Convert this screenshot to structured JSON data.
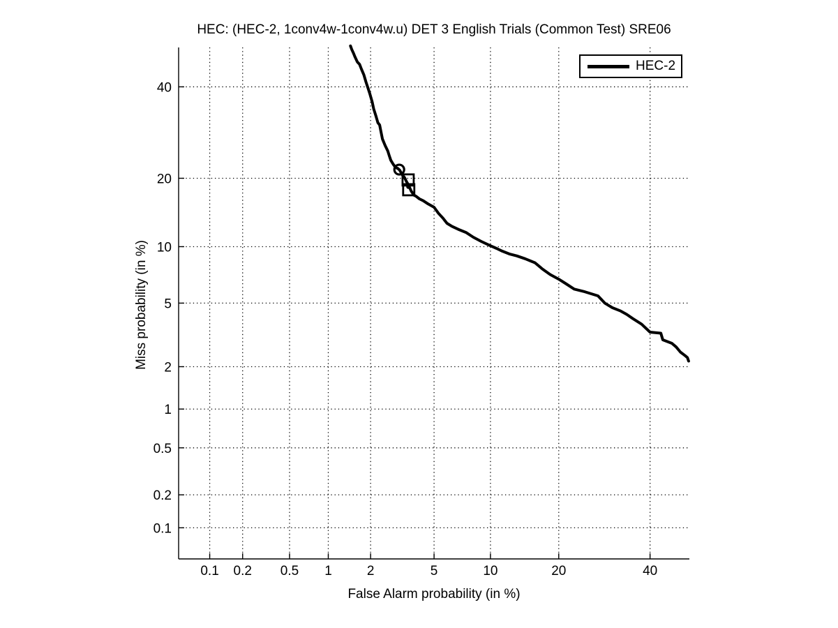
{
  "chart_data": {
    "type": "line",
    "variant": "DET curve, normal-deviate (probit) scale on both axes",
    "title": "HEC: (HEC-2, 1conv4w-1conv4w.u) DET 3 English Trials (Common Test) SRE06",
    "xlabel": "False Alarm probability (in %)",
    "ylabel": "Miss probability (in %)",
    "x_ticks_pct": [
      0.1,
      0.2,
      0.5,
      1,
      2,
      5,
      10,
      20,
      40
    ],
    "y_ticks_pct": [
      0.1,
      0.2,
      0.5,
      1,
      2,
      5,
      10,
      20,
      40
    ],
    "xlim_pct": [
      0.05,
      50
    ],
    "ylim_pct": [
      0.05,
      50
    ],
    "grid": "dotted",
    "legend_position": "top-right",
    "axis_color": "#000000",
    "series": [
      {
        "name": "HEC-2",
        "color": "#000000",
        "line_width": 4,
        "points_fa_miss_pct": [
          [
            1.45,
            50.4
          ],
          [
            1.48,
            49.5
          ],
          [
            1.52,
            48.6
          ],
          [
            1.56,
            47.6
          ],
          [
            1.62,
            46.3
          ],
          [
            1.68,
            45.7
          ],
          [
            1.73,
            44.5
          ],
          [
            1.8,
            43.0
          ],
          [
            1.86,
            41.2
          ],
          [
            1.92,
            39.7
          ],
          [
            1.98,
            38.2
          ],
          [
            2.05,
            36.3
          ],
          [
            2.1,
            34.6
          ],
          [
            2.17,
            33.0
          ],
          [
            2.24,
            31.4
          ],
          [
            2.3,
            30.9
          ],
          [
            2.35,
            29.3
          ],
          [
            2.4,
            27.8
          ],
          [
            2.5,
            26.4
          ],
          [
            2.6,
            25.3
          ],
          [
            2.66,
            24.3
          ],
          [
            2.72,
            23.4
          ],
          [
            2.82,
            22.6
          ],
          [
            2.92,
            22.0
          ],
          [
            3.02,
            21.8
          ],
          [
            3.1,
            21.5
          ],
          [
            3.22,
            20.6
          ],
          [
            3.33,
            20.1
          ],
          [
            3.42,
            19.4
          ],
          [
            3.52,
            18.8
          ],
          [
            3.65,
            17.8
          ],
          [
            3.8,
            17.1
          ],
          [
            3.92,
            16.9
          ],
          [
            4.1,
            16.5
          ],
          [
            4.32,
            16.2
          ],
          [
            4.62,
            15.7
          ],
          [
            5.0,
            15.2
          ],
          [
            5.3,
            14.3
          ],
          [
            5.62,
            13.6
          ],
          [
            5.92,
            12.9
          ],
          [
            6.3,
            12.5
          ],
          [
            6.82,
            12.1
          ],
          [
            7.5,
            11.7
          ],
          [
            8.2,
            11.1
          ],
          [
            9.0,
            10.6
          ],
          [
            10.0,
            10.1
          ],
          [
            10.7,
            9.8
          ],
          [
            11.4,
            9.5
          ],
          [
            12.3,
            9.2
          ],
          [
            13.3,
            9.0
          ],
          [
            14.5,
            8.7
          ],
          [
            16.0,
            8.3
          ],
          [
            17.2,
            7.7
          ],
          [
            18.5,
            7.2
          ],
          [
            20.0,
            6.8
          ],
          [
            21.4,
            6.4
          ],
          [
            22.9,
            6.0
          ],
          [
            25.0,
            5.8
          ],
          [
            27.8,
            5.5
          ],
          [
            29.3,
            5.0
          ],
          [
            31.0,
            4.7
          ],
          [
            32.9,
            4.5
          ],
          [
            34.3,
            4.3
          ],
          [
            35.8,
            4.05
          ],
          [
            37.9,
            3.75
          ],
          [
            40.0,
            3.35
          ],
          [
            42.7,
            3.3
          ],
          [
            43.2,
            3.0
          ],
          [
            45.5,
            2.85
          ],
          [
            46.6,
            2.7
          ],
          [
            47.7,
            2.5
          ],
          [
            48.9,
            2.37
          ],
          [
            49.5,
            2.3
          ],
          [
            49.8,
            2.18
          ]
        ]
      }
    ],
    "markers": [
      {
        "shape": "circle",
        "fa_pct": 3.08,
        "miss_pct": 21.6
      },
      {
        "shape": "square",
        "fa_pct": 3.5,
        "miss_pct": 19.7
      },
      {
        "shape": "square",
        "fa_pct": 3.53,
        "miss_pct": 18.0
      },
      {
        "shape": "dot",
        "fa_pct": 3.51,
        "miss_pct": 18.5
      }
    ]
  }
}
